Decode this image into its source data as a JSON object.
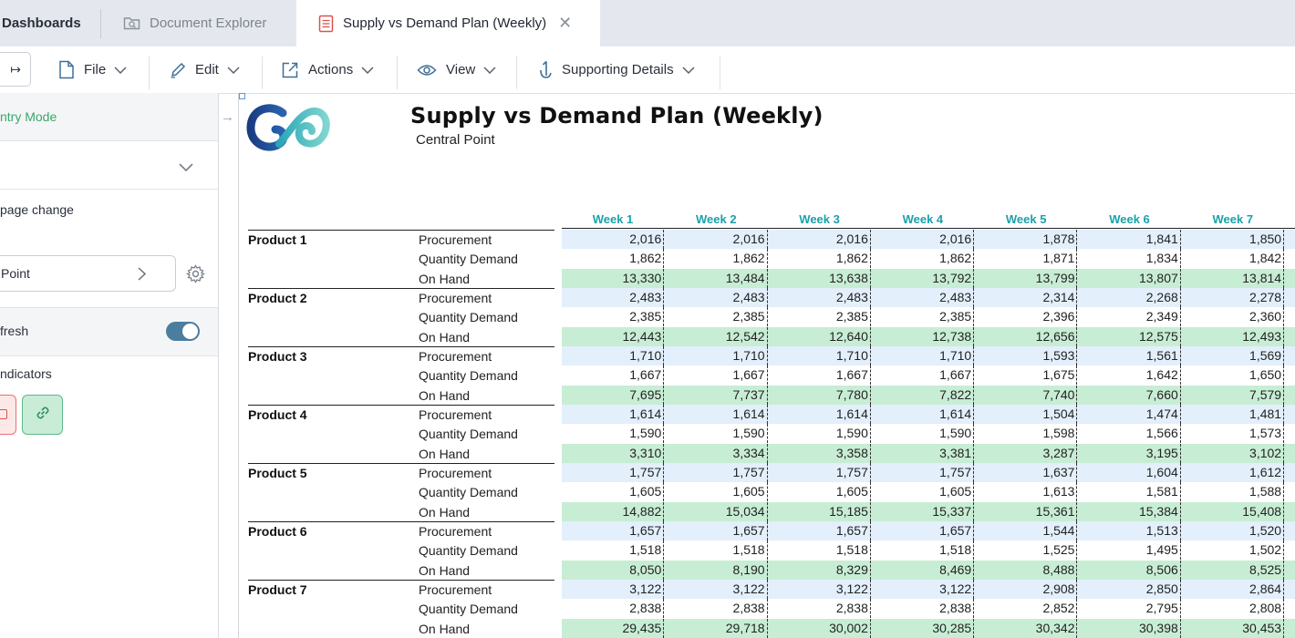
{
  "tabs": {
    "dashboards": "Dashboards",
    "document_explorer": "Document Explorer",
    "active": "Supply vs Demand Plan (Weekly)"
  },
  "toolbar": {
    "expand_symbol": "↦",
    "file": "File",
    "edit": "Edit",
    "actions": "Actions",
    "view": "View",
    "supporting_details": "Supporting Details"
  },
  "panel": {
    "entry_mode": "ntry Mode",
    "page_change": "page change",
    "selected_point": "Point",
    "refresh": "fresh",
    "refresh_on": true,
    "indicators": "ndicators"
  },
  "report": {
    "title": "Supply vs Demand Plan (Weekly)",
    "subtitle": "Central Point",
    "weeks": [
      "Week 1",
      "Week 2",
      "Week 3",
      "Week 4",
      "Week 5",
      "Week 6",
      "Week 7"
    ],
    "metrics": [
      "Procurement",
      "Quantity Demand",
      "On Hand"
    ],
    "products": [
      {
        "name": "Product 1",
        "rows": [
          [
            "2,016",
            "2,016",
            "2,016",
            "2,016",
            "1,878",
            "1,841",
            "1,850"
          ],
          [
            "1,862",
            "1,862",
            "1,862",
            "1,862",
            "1,871",
            "1,834",
            "1,842"
          ],
          [
            "13,330",
            "13,484",
            "13,638",
            "13,792",
            "13,799",
            "13,807",
            "13,814"
          ]
        ]
      },
      {
        "name": "Product 2",
        "rows": [
          [
            "2,483",
            "2,483",
            "2,483",
            "2,483",
            "2,314",
            "2,268",
            "2,278"
          ],
          [
            "2,385",
            "2,385",
            "2,385",
            "2,385",
            "2,396",
            "2,349",
            "2,360"
          ],
          [
            "12,443",
            "12,542",
            "12,640",
            "12,738",
            "12,656",
            "12,575",
            "12,493"
          ]
        ]
      },
      {
        "name": "Product 3",
        "rows": [
          [
            "1,710",
            "1,710",
            "1,710",
            "1,710",
            "1,593",
            "1,561",
            "1,569"
          ],
          [
            "1,667",
            "1,667",
            "1,667",
            "1,667",
            "1,675",
            "1,642",
            "1,650"
          ],
          [
            "7,695",
            "7,737",
            "7,780",
            "7,822",
            "7,740",
            "7,660",
            "7,579"
          ]
        ]
      },
      {
        "name": "Product 4",
        "rows": [
          [
            "1,614",
            "1,614",
            "1,614",
            "1,614",
            "1,504",
            "1,474",
            "1,481"
          ],
          [
            "1,590",
            "1,590",
            "1,590",
            "1,590",
            "1,598",
            "1,566",
            "1,573"
          ],
          [
            "3,310",
            "3,334",
            "3,358",
            "3,381",
            "3,287",
            "3,195",
            "3,102"
          ]
        ]
      },
      {
        "name": "Product 5",
        "rows": [
          [
            "1,757",
            "1,757",
            "1,757",
            "1,757",
            "1,637",
            "1,604",
            "1,612"
          ],
          [
            "1,605",
            "1,605",
            "1,605",
            "1,605",
            "1,613",
            "1,581",
            "1,588"
          ],
          [
            "14,882",
            "15,034",
            "15,185",
            "15,337",
            "15,361",
            "15,384",
            "15,408"
          ]
        ]
      },
      {
        "name": "Product 6",
        "rows": [
          [
            "1,657",
            "1,657",
            "1,657",
            "1,657",
            "1,544",
            "1,513",
            "1,520"
          ],
          [
            "1,518",
            "1,518",
            "1,518",
            "1,518",
            "1,525",
            "1,495",
            "1,502"
          ],
          [
            "8,050",
            "8,190",
            "8,329",
            "8,469",
            "8,488",
            "8,506",
            "8,525"
          ]
        ]
      },
      {
        "name": "Product 7",
        "rows": [
          [
            "3,122",
            "3,122",
            "3,122",
            "3,122",
            "2,908",
            "2,850",
            "2,864"
          ],
          [
            "2,838",
            "2,838",
            "2,838",
            "2,838",
            "2,852",
            "2,795",
            "2,808"
          ],
          [
            "29,435",
            "29,718",
            "30,002",
            "30,285",
            "30,342",
            "30,398",
            "30,453"
          ]
        ]
      }
    ]
  },
  "colors": {
    "procurement_bg": "#e3effb",
    "demand_bg": "#ffffff",
    "onhand_bg": "#c8edd5",
    "week_header": "#1aa1ab",
    "entry_mode": "#3aa76b"
  }
}
